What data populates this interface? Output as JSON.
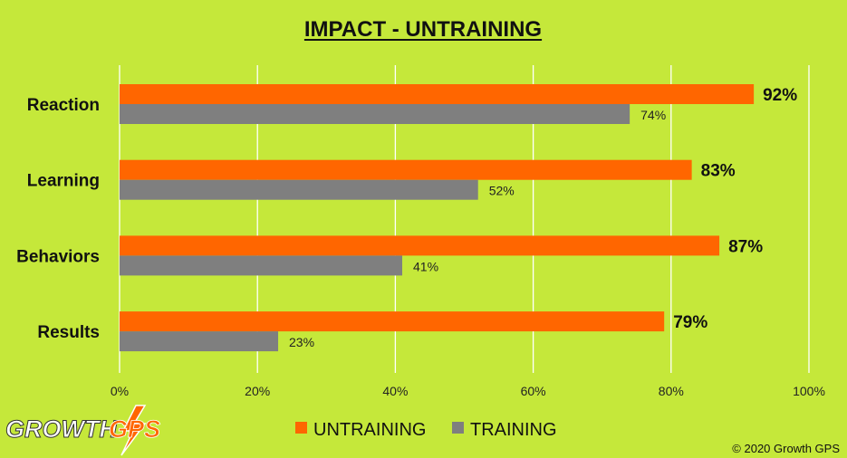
{
  "chart_data": {
    "type": "bar",
    "orientation": "horizontal",
    "title": "IMPACT - UNTRAINING",
    "categories": [
      "Reaction",
      "Learning",
      "Behaviors",
      "Results"
    ],
    "series": [
      {
        "name": "UNTRAINING",
        "values": [
          92,
          83,
          87,
          79
        ],
        "labels": [
          "92%",
          "83%",
          "87%",
          "79%"
        ],
        "color": "#ff6600"
      },
      {
        "name": "TRAINING",
        "values": [
          74,
          52,
          41,
          23
        ],
        "labels": [
          "74%",
          "52%",
          "41%",
          "23%"
        ],
        "color": "#7f7f7f"
      }
    ],
    "xlim": [
      0,
      100
    ],
    "xticks": [
      "0%",
      "20%",
      "40%",
      "60%",
      "80%",
      "100%"
    ],
    "grid": true,
    "legend_position": "bottom-center"
  },
  "logo": {
    "part1": "GROWTH",
    "part2": "GPS"
  },
  "copyright": "© 2020 Growth GPS",
  "colors": {
    "background": "#c5e83a",
    "grid": "#ffffff",
    "accent": "#ff6600",
    "secondary": "#7f7f7f"
  }
}
